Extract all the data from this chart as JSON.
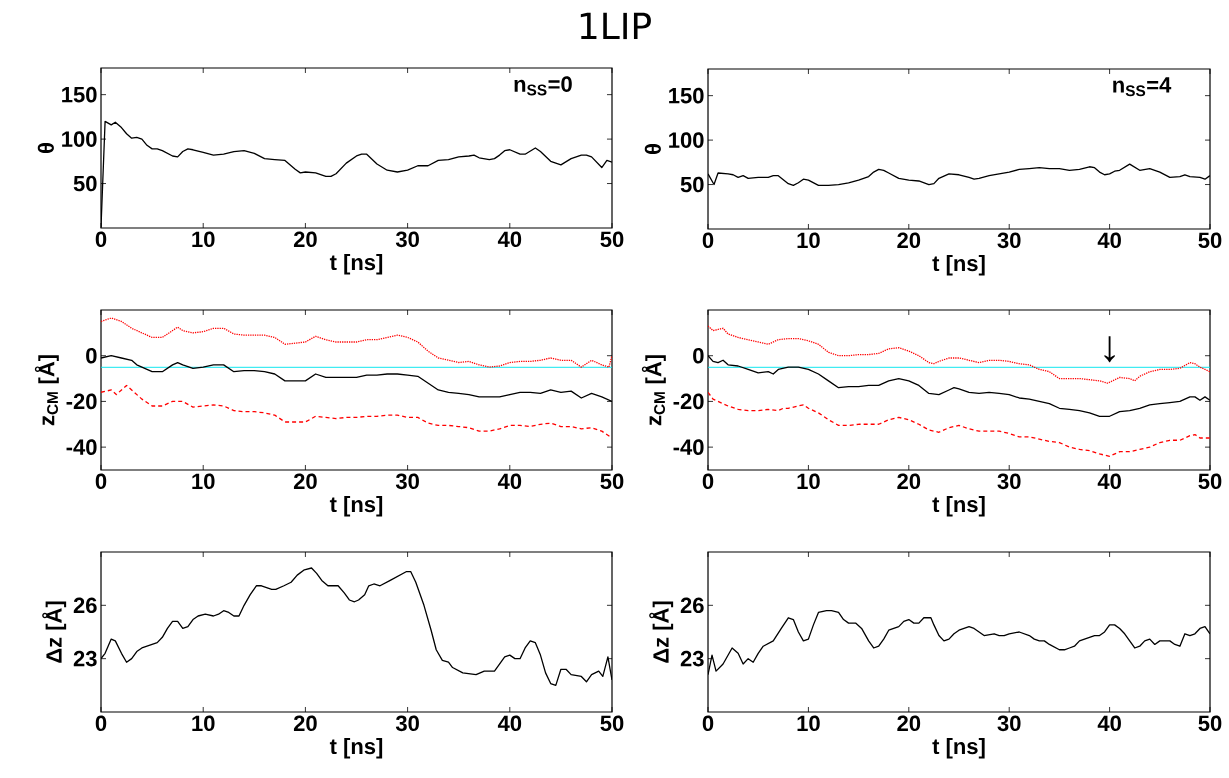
{
  "chart_data": [
    {
      "type": "line",
      "title": "1LIP",
      "xlabel": "t [ns]",
      "ylabel": "θ",
      "annotations": [
        "n$_{SS}$=0"
      ],
      "xlim": [
        0,
        50
      ],
      "ylim": [
        0,
        180
      ],
      "xticks": [
        0,
        10,
        20,
        30,
        40,
        50
      ],
      "yticks": [
        50,
        100,
        150
      ],
      "marker": "none",
      "series": [
        {
          "color": "#000000",
          "line_style": "solid",
          "x": [
            0,
            0.4,
            1,
            1.4,
            2,
            2.5,
            3,
            3.5,
            4,
            4.5,
            5,
            5.5,
            6,
            7,
            7.5,
            8,
            8.5,
            9,
            10,
            11,
            12,
            13,
            14,
            15,
            16,
            17,
            18,
            19,
            19.5,
            20,
            21,
            22,
            22.5,
            23,
            24,
            25,
            25.5,
            26,
            27,
            28,
            29,
            30,
            31,
            32,
            33,
            34,
            35,
            36,
            36.5,
            37,
            38,
            38.5,
            39,
            39.5,
            40,
            41,
            41.5,
            42.5,
            43,
            44,
            45,
            46,
            47,
            47.5,
            48,
            49,
            49.5,
            50
          ],
          "values": [
            1,
            120,
            116,
            119,
            113,
            106,
            101,
            102,
            100,
            93,
            89,
            89,
            87,
            81,
            80,
            86,
            89,
            88,
            85,
            82,
            83,
            86,
            87,
            84,
            78,
            77,
            76,
            66,
            62,
            63,
            62,
            58,
            58,
            61,
            73,
            81,
            83,
            83,
            72,
            65,
            63,
            65,
            70,
            70,
            76,
            77,
            80,
            81,
            82,
            79,
            77,
            78,
            82,
            87,
            88,
            83,
            83,
            90,
            86,
            75,
            71,
            78,
            82,
            82,
            80,
            68,
            76,
            74
          ]
        }
      ]
    },
    {
      "type": "line",
      "xlabel": "t [ns]",
      "ylabel": "θ",
      "annotations": [
        "n$_{SS}$=4"
      ],
      "xlim": [
        0,
        50
      ],
      "ylim": [
        0,
        180
      ],
      "xticks": [
        0,
        10,
        20,
        30,
        40,
        50
      ],
      "yticks": [
        50,
        100,
        150
      ],
      "marker": "none",
      "series": [
        {
          "color": "#000000",
          "line_style": "solid",
          "x": [
            0,
            0.6,
            1,
            2,
            2.5,
            3,
            3.5,
            4,
            5,
            6,
            6.5,
            7,
            8,
            8.5,
            9,
            9.5,
            10,
            11,
            12,
            13,
            14,
            15,
            16,
            16.5,
            17,
            17.5,
            18,
            19,
            20,
            21,
            22,
            22.5,
            23,
            24,
            25,
            26,
            26.5,
            27,
            28,
            29,
            30,
            31,
            32,
            33,
            34,
            35,
            36,
            37,
            38,
            38.5,
            39,
            39.5,
            40,
            40.5,
            41,
            42,
            43,
            44,
            45,
            46,
            47,
            47.5,
            48,
            49,
            49.5,
            50
          ],
          "values": [
            62,
            50,
            63,
            62,
            61,
            58,
            60,
            57,
            58,
            58,
            60,
            60,
            51,
            49,
            52,
            56,
            55,
            49,
            49,
            50,
            52,
            55,
            59,
            64,
            67,
            66,
            63,
            57,
            55,
            54,
            50,
            51,
            57,
            62,
            61,
            58,
            56,
            57,
            60,
            62,
            64,
            67,
            68,
            69,
            68,
            68,
            66,
            67,
            70,
            69,
            64,
            61,
            62,
            65,
            66,
            73,
            66,
            68,
            64,
            58,
            59,
            61,
            59,
            58,
            56,
            60
          ]
        }
      ]
    },
    {
      "type": "line",
      "xlabel": "t [ns]",
      "ylabel": "z$_{CM}$ [Å]",
      "xlim": [
        0,
        50
      ],
      "ylim": [
        -50,
        20
      ],
      "xticks": [
        0,
        10,
        20,
        30,
        40,
        50
      ],
      "yticks": [
        -40,
        -20,
        0
      ],
      "marker": "none",
      "ref_lines": [
        {
          "axis": "y",
          "value": -5,
          "color": "#00e5ee"
        }
      ],
      "series": [
        {
          "color": "#000000",
          "line_style": "solid",
          "x": [
            0,
            1,
            2,
            3,
            3.5,
            4,
            5,
            6,
            7,
            7.5,
            8,
            9,
            10,
            11,
            12,
            13,
            14,
            15,
            16,
            17,
            18,
            19,
            20,
            21,
            22,
            23,
            24,
            25,
            26,
            27,
            28,
            29,
            30,
            31,
            32,
            33,
            34,
            35,
            36,
            37,
            38,
            39,
            40,
            41,
            42,
            43,
            44,
            45,
            46,
            47,
            48,
            49,
            50
          ],
          "values": [
            -1,
            0,
            -1,
            -2,
            -4,
            -5,
            -7,
            -7,
            -4,
            -3,
            -4,
            -5.5,
            -5,
            -4,
            -4,
            -7,
            -6.5,
            -6.5,
            -7,
            -8,
            -11,
            -11,
            -11,
            -8,
            -9.5,
            -9.5,
            -9.5,
            -9.5,
            -8.5,
            -8.5,
            -8,
            -8,
            -8.5,
            -9,
            -12,
            -15,
            -16,
            -16.5,
            -17,
            -18,
            -18,
            -18,
            -17,
            -16,
            -16,
            -16.5,
            -15,
            -16,
            -15.5,
            -18.5,
            -16.5,
            -18,
            -20
          ]
        },
        {
          "color": "#ff0000",
          "line_style": "dotted",
          "x": [
            0,
            1,
            2,
            3,
            4,
            5,
            6,
            7,
            7.5,
            8,
            9,
            10,
            11,
            12,
            13,
            14,
            15,
            16,
            17,
            18,
            19,
            20,
            21,
            22,
            23,
            24,
            25,
            26,
            27,
            28,
            29,
            30,
            31,
            32,
            33,
            34,
            35,
            36,
            37,
            38,
            39,
            40,
            41,
            42,
            43,
            44,
            45,
            46,
            47,
            48,
            49,
            49.7,
            50
          ],
          "values": [
            15,
            16.5,
            15,
            12,
            10,
            8,
            8,
            11,
            12.5,
            11,
            10,
            10.5,
            12,
            12,
            9.5,
            9,
            9,
            9,
            8,
            5,
            5.5,
            6,
            8.5,
            7,
            6,
            6,
            6,
            7,
            7,
            8,
            9,
            8,
            6,
            2,
            -1,
            -2,
            -3,
            -2.5,
            -4,
            -5,
            -4.5,
            -3,
            -2.5,
            -2.5,
            -2,
            -1,
            -2,
            -2,
            -5,
            -2,
            -4,
            -5,
            0
          ]
        },
        {
          "color": "#ff0000",
          "line_style": "dashed",
          "x": [
            0,
            1,
            1.5,
            2.5,
            3,
            4,
            5,
            6,
            7,
            8,
            9,
            10,
            11,
            12,
            13,
            14,
            15,
            16,
            17,
            18,
            19,
            20,
            21,
            22,
            23,
            24,
            25,
            26,
            27,
            28,
            29,
            30,
            31,
            32,
            33,
            34,
            35,
            36,
            37,
            38,
            39,
            40,
            41,
            42,
            43,
            44,
            45,
            46,
            47,
            48,
            49,
            50
          ],
          "values": [
            -16,
            -15,
            -17,
            -13,
            -15,
            -19,
            -22,
            -22,
            -20,
            -20,
            -22.5,
            -22,
            -21.5,
            -22,
            -24,
            -24.5,
            -24.5,
            -25,
            -26,
            -29,
            -29,
            -29,
            -26.5,
            -27,
            -27.5,
            -27,
            -27,
            -26.5,
            -26.5,
            -26,
            -26,
            -27,
            -27,
            -29.5,
            -30.5,
            -30.5,
            -31,
            -31.5,
            -33,
            -33,
            -32,
            -30.5,
            -30.5,
            -31,
            -30,
            -29.5,
            -31,
            -31,
            -32,
            -31.5,
            -33,
            -36
          ]
        }
      ]
    },
    {
      "type": "line",
      "xlabel": "t [ns]",
      "ylabel": "z$_{CM}$ [Å]",
      "annotations": [
        {
          "text": "↓",
          "x": 40,
          "y": -3
        }
      ],
      "xlim": [
        0,
        50
      ],
      "ylim": [
        -50,
        20
      ],
      "xticks": [
        0,
        10,
        20,
        30,
        40,
        50
      ],
      "yticks": [
        -40,
        -20,
        0
      ],
      "marker": "none",
      "ref_lines": [
        {
          "axis": "y",
          "value": -5,
          "color": "#00e5ee"
        }
      ],
      "series": [
        {
          "color": "#000000",
          "line_style": "solid",
          "x": [
            0,
            0.5,
            1,
            1.5,
            2,
            3,
            4,
            5,
            6,
            6.5,
            7,
            8,
            9,
            10,
            11,
            12,
            13,
            14,
            15,
            16,
            17,
            18,
            19,
            20,
            21,
            22,
            23,
            24,
            24.5,
            25,
            26,
            27,
            28,
            29,
            30,
            31,
            32,
            33,
            34,
            35,
            36,
            37,
            38,
            39,
            40,
            41,
            42,
            43,
            44,
            45,
            46,
            47,
            48,
            48.5,
            49,
            49.5,
            50
          ],
          "values": [
            0,
            -2.5,
            -3,
            -2,
            -4,
            -4.5,
            -6,
            -7.5,
            -7,
            -8,
            -6,
            -5,
            -5,
            -6,
            -8,
            -11,
            -14,
            -13.5,
            -13.5,
            -13,
            -13,
            -11,
            -10,
            -11,
            -13,
            -16.5,
            -17,
            -15,
            -14,
            -14.5,
            -16,
            -16.5,
            -16,
            -16.5,
            -17,
            -18.5,
            -19,
            -20,
            -21,
            -23,
            -23.5,
            -24,
            -25,
            -26.5,
            -26.5,
            -24.5,
            -24,
            -23,
            -21.5,
            -21,
            -20.5,
            -20,
            -18,
            -18,
            -19.5,
            -18,
            -19.5
          ]
        },
        {
          "color": "#ff0000",
          "line_style": "dotted",
          "x": [
            0,
            0.5,
            1.5,
            2,
            3,
            4,
            5,
            6,
            7,
            8,
            9,
            10,
            11,
            12,
            13,
            14,
            15,
            16,
            17,
            18,
            19,
            20,
            21,
            22,
            22.5,
            23,
            24,
            25,
            26,
            27,
            28,
            29,
            30,
            31,
            32,
            33,
            34,
            35,
            36,
            37,
            38,
            39,
            39.8,
            41,
            42,
            42.5,
            43,
            44,
            45,
            46,
            47,
            48,
            48.5,
            49,
            50
          ],
          "values": [
            13,
            11,
            12,
            9.5,
            8,
            7,
            6,
            5,
            7,
            7.5,
            7.5,
            6.5,
            5,
            1.5,
            0,
            0,
            0.5,
            0.5,
            1,
            3,
            3.5,
            2,
            0,
            -3,
            -3.5,
            -2.5,
            -1,
            -1,
            -2,
            -3,
            -2,
            -2,
            -2.5,
            -3.5,
            -4,
            -6,
            -7,
            -10,
            -10,
            -10,
            -10.5,
            -11,
            -12,
            -9.5,
            -10,
            -11,
            -9,
            -7,
            -6,
            -6,
            -5.5,
            -3,
            -3.5,
            -5,
            -7
          ]
        },
        {
          "color": "#ff0000",
          "line_style": "dashed",
          "x": [
            0,
            0.5,
            1,
            2,
            3,
            4,
            5,
            6,
            7,
            7.5,
            8,
            9,
            9.5,
            10,
            11,
            12,
            13,
            14,
            15,
            16,
            17,
            18,
            19,
            20,
            21,
            22,
            23,
            24,
            25,
            26,
            27,
            28,
            29,
            30,
            31,
            32,
            33,
            34,
            35,
            36,
            37,
            38,
            39,
            40,
            41,
            42,
            43,
            44,
            45,
            46,
            47,
            48,
            48.5,
            49,
            50
          ],
          "values": [
            -16,
            -19,
            -20,
            -22,
            -23.5,
            -24,
            -24,
            -23.5,
            -24,
            -23,
            -23,
            -22,
            -21.5,
            -23,
            -25,
            -28,
            -30.5,
            -30.5,
            -30,
            -30,
            -30,
            -28,
            -27,
            -28,
            -30,
            -32.5,
            -33.5,
            -31.5,
            -30.5,
            -32,
            -33,
            -33,
            -33,
            -34,
            -35.5,
            -35.5,
            -36.5,
            -37.5,
            -38,
            -40,
            -41,
            -41.5,
            -43,
            -44,
            -42,
            -42,
            -41,
            -40,
            -38,
            -37,
            -37,
            -35,
            -34.5,
            -36,
            -36
          ]
        }
      ]
    },
    {
      "type": "line",
      "xlabel": "t [ns]",
      "ylabel": "Δz [Å]",
      "xlim": [
        0,
        50
      ],
      "ylim": [
        20,
        29
      ],
      "xticks": [
        0,
        10,
        20,
        30,
        40,
        50
      ],
      "yticks": [
        23,
        26
      ],
      "marker": "none",
      "series": [
        {
          "color": "#000000",
          "line_style": "solid",
          "x": [
            0,
            0.4,
            1,
            1.4,
            2,
            2.5,
            3,
            3.5,
            4,
            4.5,
            5,
            5.5,
            6,
            6.5,
            7,
            7.5,
            8,
            8.5,
            9,
            9.5,
            10.2,
            11,
            11.5,
            12,
            12.5,
            13,
            13.5,
            14,
            14.6,
            15.2,
            15.7,
            16.7,
            17.1,
            17.9,
            18.6,
            19.2,
            19.9,
            20.6,
            21.1,
            21.6,
            22.2,
            23.2,
            23.8,
            24.3,
            24.8,
            25.2,
            25.8,
            26.2,
            26.7,
            27.3,
            28.3,
            29.9,
            30.3,
            30.8,
            31.6,
            32.3,
            32.8,
            33.4,
            34,
            34.4,
            35.4,
            36.7,
            37.5,
            38.5,
            39.5,
            40,
            40.5,
            41,
            41.5,
            42,
            42.5,
            43,
            43.5,
            44,
            44.5,
            45,
            45.5,
            46,
            47,
            47.5,
            48,
            48.7,
            49.1,
            49.6,
            50
          ],
          "values": [
            23.0,
            23.3,
            24.1,
            24.0,
            23.3,
            22.8,
            23.0,
            23.4,
            23.6,
            23.7,
            23.8,
            23.9,
            24.2,
            24.7,
            25.1,
            25.1,
            24.7,
            24.8,
            25.2,
            25.4,
            25.5,
            25.4,
            25.5,
            25.7,
            25.6,
            25.4,
            25.4,
            26.0,
            26.6,
            27.1,
            27.1,
            26.9,
            26.9,
            27.1,
            27.3,
            27.7,
            28.0,
            28.1,
            27.8,
            27.4,
            27.1,
            27.1,
            26.7,
            26.3,
            26.2,
            26.3,
            26.6,
            27.1,
            27.2,
            27.1,
            27.4,
            27.9,
            27.9,
            27.3,
            26.0,
            24.6,
            23.5,
            22.9,
            22.8,
            22.5,
            22.2,
            22.1,
            22.3,
            22.3,
            23.1,
            23.2,
            23.0,
            23.0,
            23.6,
            24.0,
            23.9,
            23.2,
            22.2,
            21.6,
            21.5,
            22.4,
            22.4,
            22.1,
            22.0,
            21.7,
            22.1,
            22.3,
            22.0,
            23.1,
            21.8
          ]
        }
      ]
    },
    {
      "type": "line",
      "xlabel": "t [ns]",
      "ylabel": "Δz [Å]",
      "xlim": [
        0,
        50
      ],
      "ylim": [
        20,
        29
      ],
      "xticks": [
        0,
        10,
        20,
        30,
        40,
        50
      ],
      "yticks": [
        23,
        26
      ],
      "marker": "none",
      "series": [
        {
          "color": "#000000",
          "line_style": "solid",
          "x": [
            0,
            0.4,
            0.8,
            1.5,
            2.4,
            3,
            3.5,
            4,
            4.5,
            5,
            5.5,
            6.5,
            7.3,
            8,
            8.5,
            9,
            9.5,
            10,
            10.5,
            11,
            11.8,
            12.3,
            13,
            13.5,
            14,
            14.7,
            15.3,
            16,
            16.5,
            17,
            17.5,
            18,
            18.5,
            19,
            19.5,
            20,
            20.5,
            21,
            21.5,
            22.2,
            22.5,
            23,
            23.5,
            24,
            24.5,
            25,
            26,
            26.5,
            27,
            27.5,
            28.5,
            29,
            29.5,
            30,
            31,
            32,
            32.5,
            33,
            33.5,
            34,
            35,
            35.5,
            36,
            36.5,
            37,
            37.5,
            38,
            38.5,
            39,
            39.5,
            40,
            40.5,
            41,
            41.5,
            42,
            42.5,
            43,
            43.5,
            44,
            44.5,
            45,
            46,
            46.5,
            47,
            47.5,
            48,
            48.5,
            49,
            49.5,
            50
          ],
          "values": [
            22.1,
            23.2,
            22.3,
            22.7,
            23.6,
            23.3,
            22.7,
            23.0,
            22.8,
            23.3,
            23.7,
            24.0,
            24.7,
            25.3,
            25.2,
            24.5,
            24.0,
            24.1,
            24.9,
            25.6,
            25.7,
            25.7,
            25.6,
            25.2,
            25.0,
            25.0,
            24.7,
            24.0,
            23.6,
            23.7,
            24.1,
            24.6,
            24.7,
            24.8,
            25.1,
            25.2,
            25.0,
            25.0,
            25.3,
            25.3,
            24.9,
            24.3,
            24.0,
            24.1,
            24.4,
            24.6,
            24.8,
            24.7,
            24.5,
            24.3,
            24.4,
            24.3,
            24.3,
            24.4,
            24.5,
            24.3,
            24.1,
            24.0,
            24.0,
            23.8,
            23.5,
            23.5,
            23.6,
            23.7,
            24.0,
            24.1,
            24.2,
            24.3,
            24.3,
            24.5,
            24.9,
            24.9,
            24.7,
            24.4,
            24.0,
            23.6,
            23.7,
            24.0,
            24.1,
            23.8,
            24.0,
            24.0,
            23.8,
            23.7,
            24.4,
            24.3,
            24.4,
            24.7,
            24.8,
            24.4
          ]
        }
      ]
    }
  ]
}
